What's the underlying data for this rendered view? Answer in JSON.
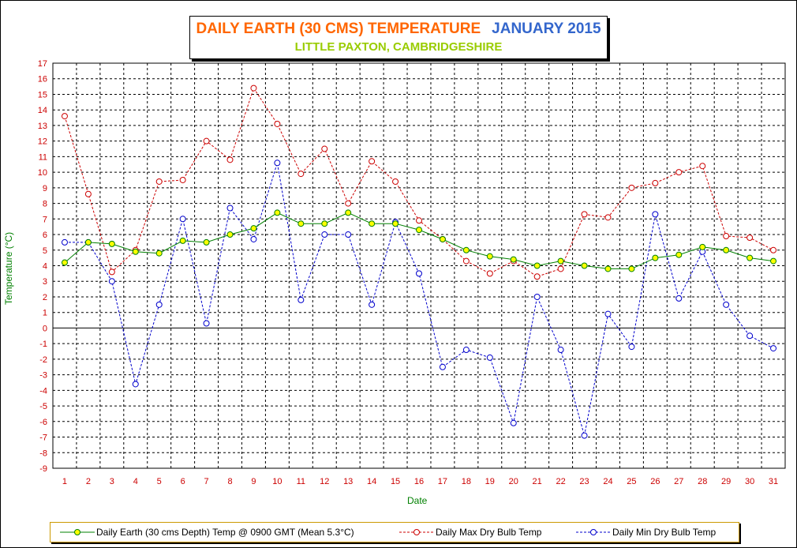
{
  "chart_data": {
    "type": "line",
    "title": "DAILY EARTH (30 CMS) TEMPERATURE",
    "title_month": "JANUARY 2015",
    "subtitle": "LITTLE PAXTON, CAMBRIDGESHIRE",
    "xlabel": "Date",
    "ylabel": "Temperature (°C)",
    "ylim": [
      -9,
      17
    ],
    "grid": true,
    "legend_position": "bottom",
    "categories": [
      "1",
      "2",
      "3",
      "4",
      "5",
      "6",
      "7",
      "8",
      "9",
      "10",
      "11",
      "12",
      "13",
      "14",
      "15",
      "16",
      "17",
      "18",
      "19",
      "20",
      "21",
      "22",
      "23",
      "24",
      "25",
      "26",
      "27",
      "28",
      "29",
      "30",
      "31"
    ],
    "y_ticks": [
      "17",
      "16",
      "15",
      "14",
      "13",
      "12",
      "11",
      "10",
      "9",
      "8",
      "7",
      "6",
      "5",
      "4",
      "3",
      "2",
      "1",
      "0",
      "-1",
      "-2",
      "-3",
      "-4",
      "-5",
      "-6",
      "-7",
      "-8",
      "-9"
    ],
    "series": [
      {
        "name": "Daily Earth (30 cms Depth) Temp @ 0900 GMT (Mean 5.3°C)",
        "color": "#008000",
        "marker_fill": "#ffff00",
        "style": "solid",
        "values": [
          4.2,
          5.5,
          5.4,
          4.9,
          4.8,
          5.6,
          5.5,
          6.0,
          6.4,
          7.4,
          6.7,
          6.7,
          7.4,
          6.7,
          6.7,
          6.3,
          5.7,
          5.0,
          4.6,
          4.4,
          4.0,
          4.3,
          4.0,
          3.8,
          3.8,
          4.5,
          4.7,
          5.2,
          5.0,
          4.5,
          4.3
        ]
      },
      {
        "name": "Daily Max Dry Bulb Temp",
        "color": "#cc0000",
        "marker_fill": "#ffffff",
        "style": "dashed",
        "values": [
          13.6,
          8.6,
          3.6,
          5.0,
          9.4,
          9.5,
          12.0,
          10.8,
          15.4,
          13.1,
          9.9,
          11.5,
          8.0,
          10.7,
          9.4,
          6.9,
          5.7,
          4.3,
          3.5,
          4.3,
          3.3,
          3.8,
          7.3,
          7.1,
          9.0,
          9.3,
          10.0,
          10.4,
          5.9,
          5.8,
          5.0
        ]
      },
      {
        "name": "Daily Min Dry Bulb Temp",
        "color": "#0000cc",
        "marker_fill": "#ffffff",
        "style": "dashed",
        "values": [
          5.5,
          5.5,
          3.0,
          -3.6,
          1.5,
          7.0,
          0.3,
          7.7,
          5.7,
          10.6,
          1.8,
          6.0,
          6.0,
          1.5,
          6.8,
          3.5,
          -2.5,
          -1.4,
          -1.9,
          -6.1,
          2.0,
          -1.4,
          -6.9,
          0.9,
          -1.2,
          7.3,
          1.9,
          4.9,
          1.5,
          -0.5,
          -1.3
        ]
      }
    ]
  }
}
